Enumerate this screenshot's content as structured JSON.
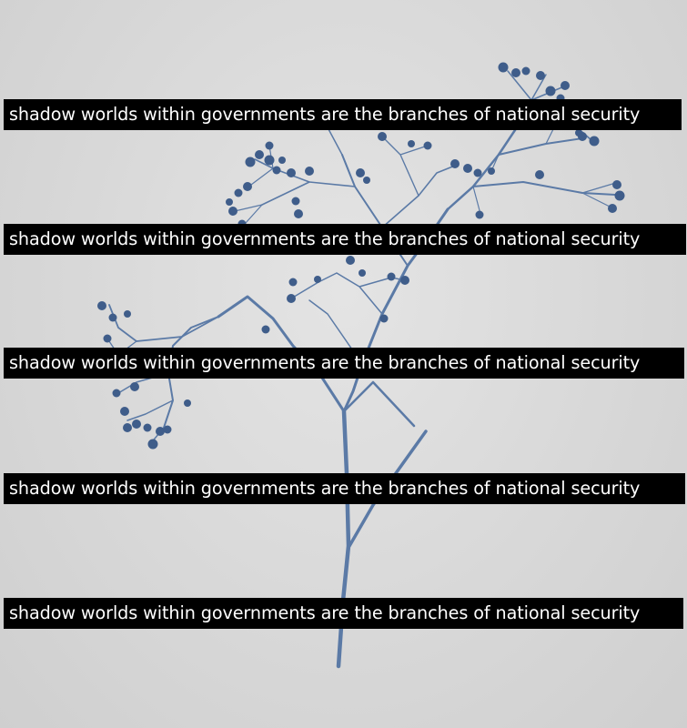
{
  "banners": [
    {
      "text": "shadow worlds within governments are the branches of national security"
    },
    {
      "text": "shadow worlds within governments are the branches of national security"
    },
    {
      "text": "shadow worlds within governments are the branches of national security"
    },
    {
      "text": "shadow worlds within governments are the branches of national security"
    },
    {
      "text": "shadow worlds within governments are the branches of national security"
    }
  ],
  "colors": {
    "background": "#d9d9d9",
    "plant_stem": "#5b7aa6",
    "plant_bud": "#3f5d8a",
    "banner_bg": "#000000",
    "banner_text": "#ffffff"
  },
  "image": {
    "subject": "dried gypsophila (baby's breath) sprig in cyanotype-blue tint"
  }
}
